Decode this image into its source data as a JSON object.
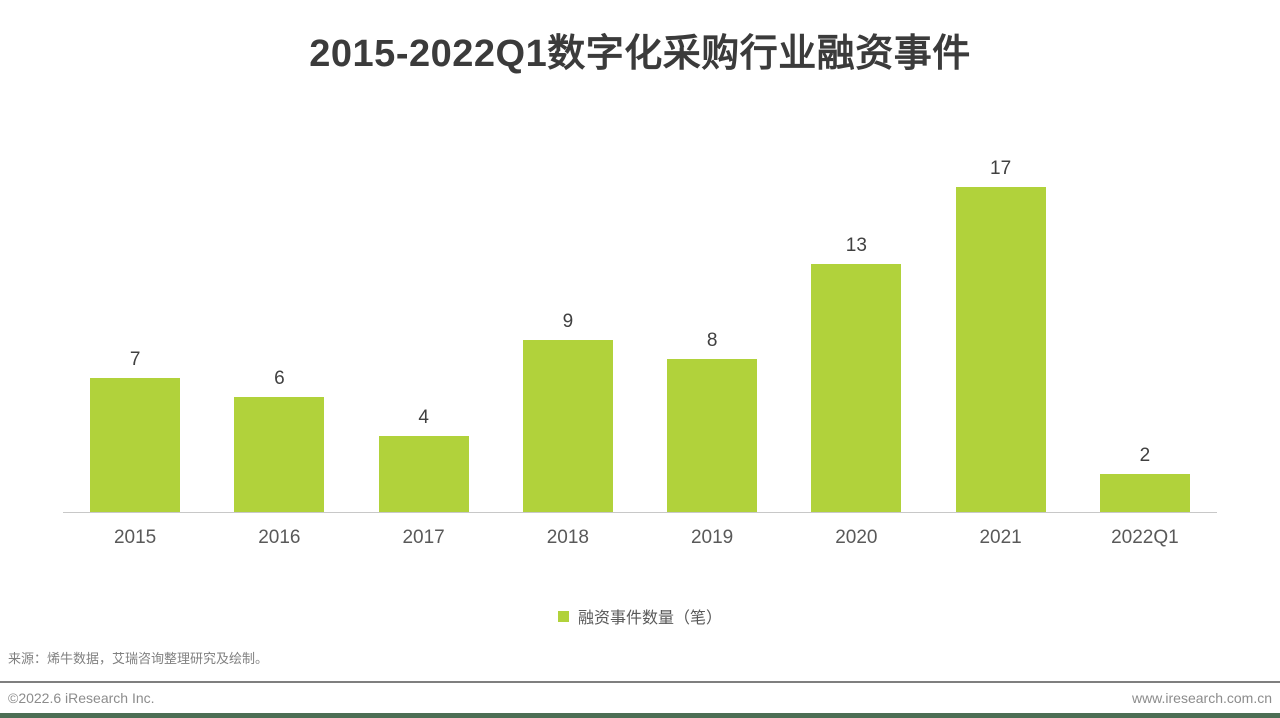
{
  "title": "2015-2022Q1数字化采购行业融资事件",
  "chart_data": {
    "type": "bar",
    "categories": [
      "2015",
      "2016",
      "2017",
      "2018",
      "2019",
      "2020",
      "2021",
      "2022Q1"
    ],
    "values": [
      7,
      6,
      4,
      9,
      8,
      13,
      17,
      2
    ],
    "title": "2015-2022Q1数字化采购行业融资事件",
    "xlabel": "",
    "ylabel": "",
    "ylim": [
      0,
      17.5
    ],
    "grid": false,
    "data_labels": true,
    "legend_entries": [
      "融资事件数量（笔）"
    ],
    "legend_position": "bottom",
    "bar_color": "#b1d23b"
  },
  "legend": {
    "label": "融资事件数量（笔）",
    "marker_color": "#b1d23b"
  },
  "source_note": "来源：烯牛数据，艾瑞咨询整理研究及绘制。",
  "footer": {
    "copyright": "©2022.6 iResearch Inc.",
    "website": "www.iresearch.com.cn"
  },
  "colors": {
    "bar": "#b1d23b",
    "title_text": "#3b3b3b",
    "value_label_text": "#404040",
    "axis_label_text": "#595959",
    "axis_line": "#c8c8c8",
    "divider": "#7f7f7f",
    "footer_text": "#8c8c8c",
    "bottom_bar": "#4c6e54"
  }
}
